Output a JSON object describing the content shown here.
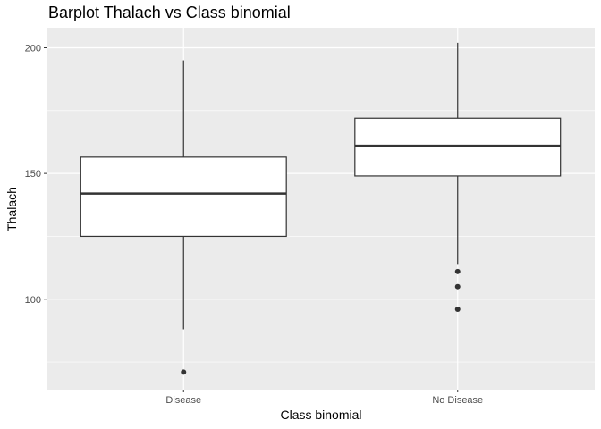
{
  "chart_data": {
    "type": "box",
    "title": "Barplot Thalach vs Class binomial",
    "xlabel": "Class binomial",
    "ylabel": "Thalach",
    "ylim": [
      64,
      208
    ],
    "yticks": [
      100,
      150,
      200
    ],
    "grid": true,
    "categories": [
      "Disease",
      "No Disease"
    ],
    "boxes": [
      {
        "category": "Disease",
        "whisker_low": 88,
        "q1": 125,
        "median": 142,
        "q3": 156.5,
        "whisker_high": 195,
        "outliers": [
          71
        ]
      },
      {
        "category": "No Disease",
        "whisker_low": 114,
        "q1": 149,
        "median": 161,
        "q3": 172,
        "whisker_high": 202,
        "outliers": [
          111,
          105,
          96
        ]
      }
    ]
  },
  "colors": {
    "panel": "#ebebeb",
    "grid": "#ffffff",
    "box_fill": "#ffffff",
    "box_line": "#333333",
    "outlier": "#333333"
  }
}
